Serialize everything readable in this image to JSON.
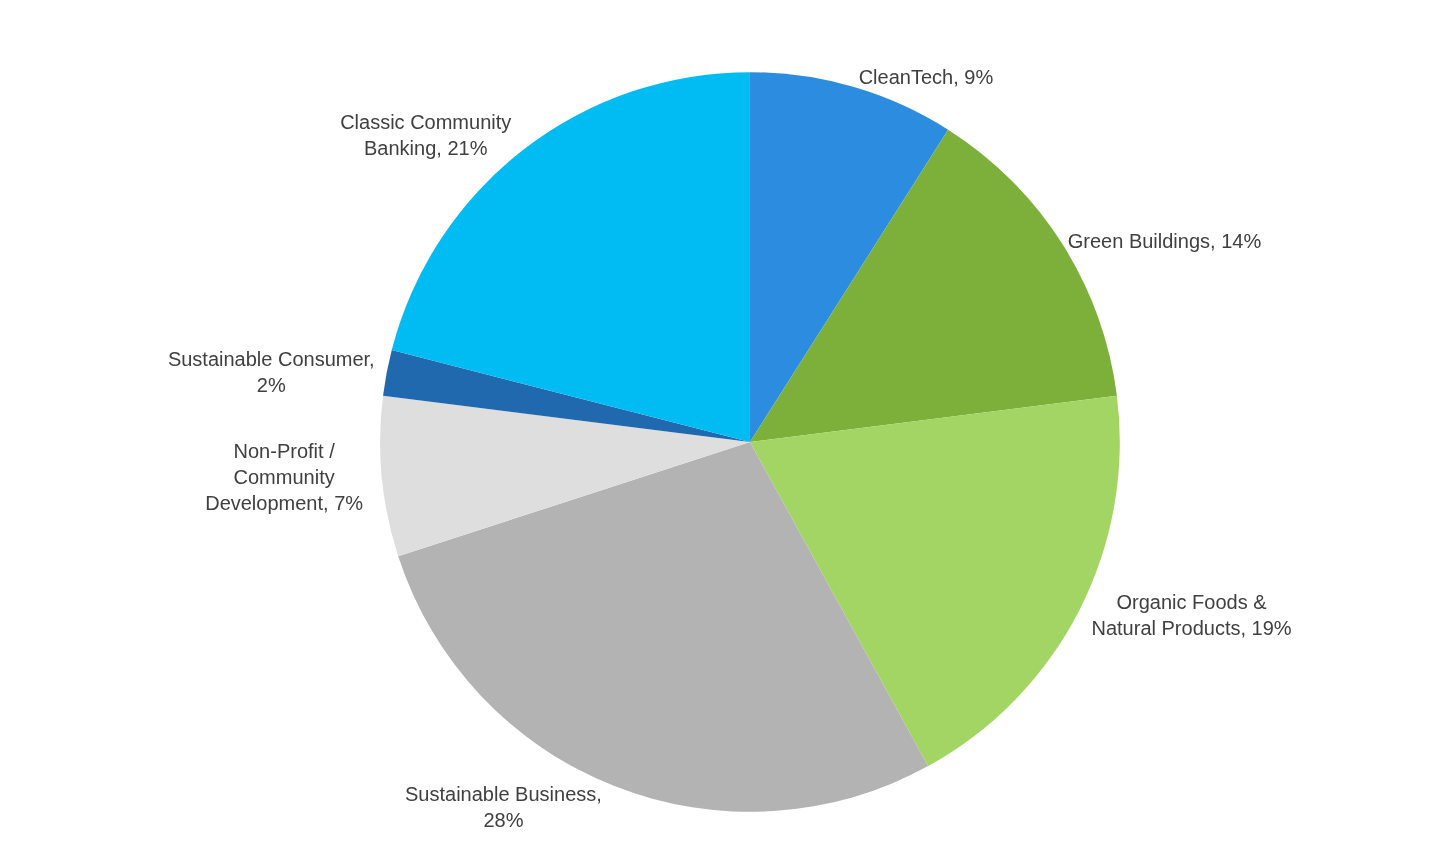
{
  "chart_data": {
    "type": "pie",
    "categories": [
      "CleanTech, 9%",
      "Green Buildings, 14%",
      "Organic Foods & Natural Products, 19%",
      "Sustainable Business, 28%",
      "Non-Profit / Community Development, 7%",
      "Sustainable Consumer, 2%",
      "Classic Community Banking, 21%"
    ],
    "values": [
      9,
      14,
      19,
      28,
      7,
      2,
      21
    ],
    "colors": [
      "#2b8ce0",
      "#7cb03a",
      "#a2d564",
      "#b3b3b3",
      "#dedede",
      "#2169ae",
      "#00bcf2"
    ],
    "legend": false
  }
}
